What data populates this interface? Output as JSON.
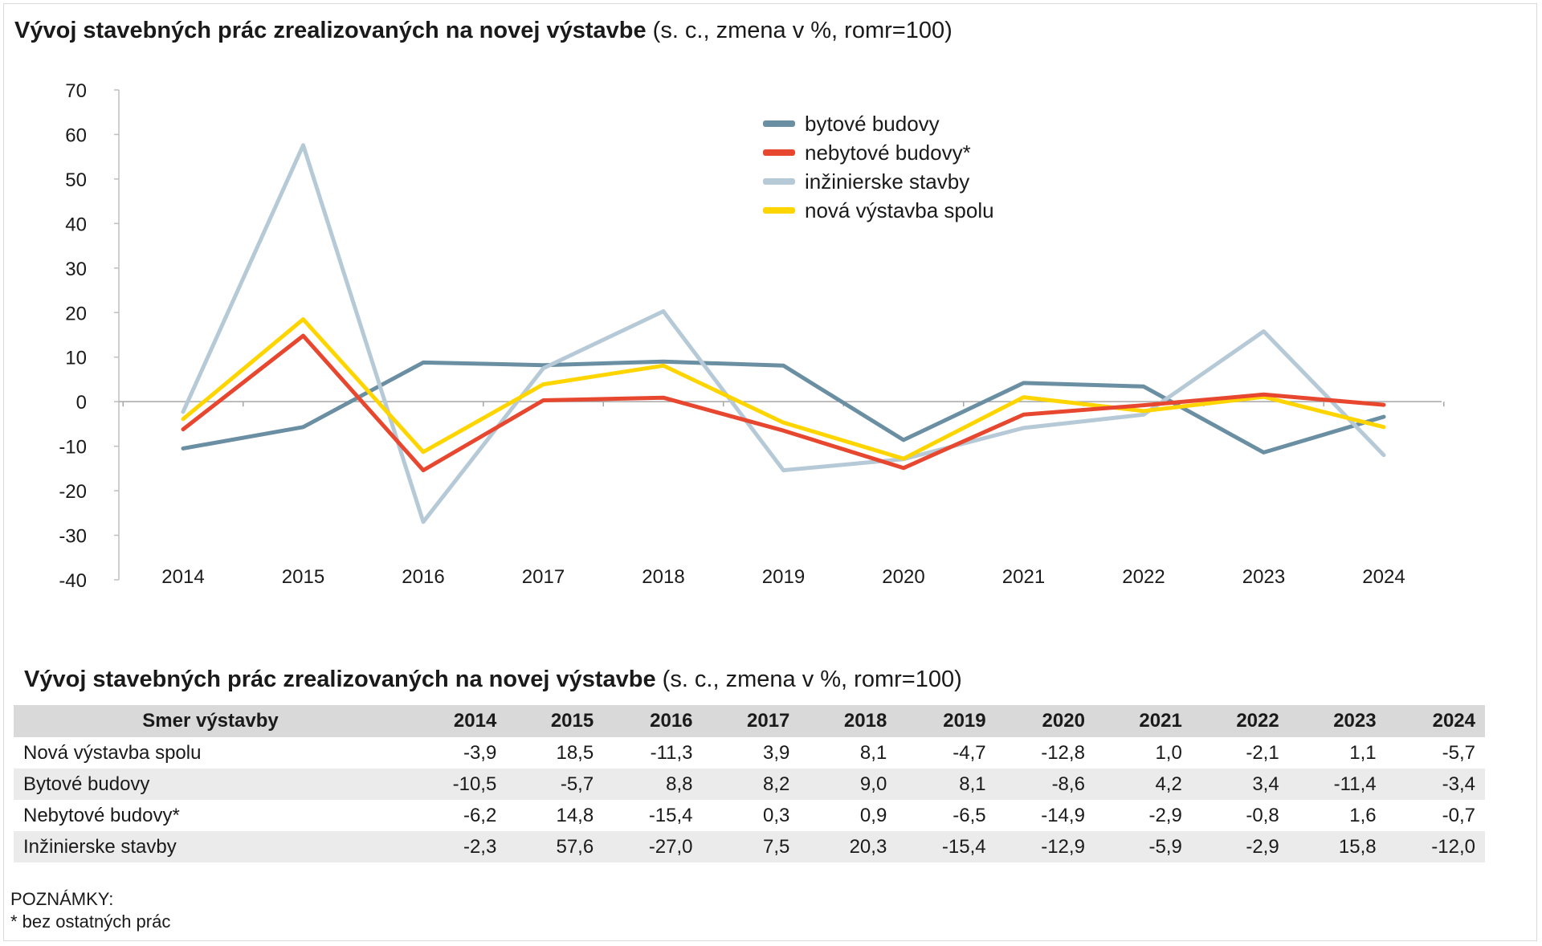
{
  "chart_title": {
    "bold": "Vývoj stavebných prác zrealizovaných na novej výstavbe",
    "rest": "(s. c., zmena v %, romr=100)"
  },
  "table_title": {
    "bold": "Vývoj stavebných prác zrealizovaných na novej výstavbe",
    "rest": "(s. c., zmena v %, romr=100)"
  },
  "chart_data": {
    "type": "line",
    "x": [
      "2014",
      "2015",
      "2016",
      "2017",
      "2018",
      "2019",
      "2020",
      "2021",
      "2022",
      "2023",
      "2024"
    ],
    "ylim": [
      -40,
      70
    ],
    "yticks": [
      "70",
      "60",
      "50",
      "40",
      "30",
      "20",
      "10",
      "0",
      "-10",
      "-20",
      "-30",
      "-40"
    ],
    "legend_position": "top-right",
    "series": [
      {
        "name": "bytové budovy",
        "color": "#6a8fa3",
        "values": [
          -10.5,
          -5.7,
          8.8,
          8.2,
          9.0,
          8.1,
          -8.6,
          4.2,
          3.4,
          -11.4,
          -3.4
        ]
      },
      {
        "name": "nebytové budovy*",
        "color": "#e8472f",
        "values": [
          -6.2,
          14.8,
          -15.4,
          0.3,
          0.9,
          -6.5,
          -14.9,
          -2.9,
          -0.8,
          1.6,
          -0.7
        ]
      },
      {
        "name": "inžinierske stavby",
        "color": "#b6c9d6",
        "values": [
          -2.3,
          57.6,
          -27.0,
          7.5,
          20.3,
          -15.4,
          -12.9,
          -5.9,
          -2.9,
          15.8,
          -12.0
        ]
      },
      {
        "name": "nová výstavba spolu",
        "color": "#ffd500",
        "values": [
          -3.9,
          18.5,
          -11.3,
          3.9,
          8.1,
          -4.7,
          -12.8,
          1.0,
          -2.1,
          1.1,
          -5.7
        ]
      }
    ]
  },
  "table": {
    "header_first": "Smer výstavby",
    "years": [
      "2014",
      "2015",
      "2016",
      "2017",
      "2018",
      "2019",
      "2020",
      "2021",
      "2022",
      "2023",
      "2024"
    ],
    "rows": [
      {
        "label": "Nová výstavba spolu",
        "values": [
          "-3,9",
          "18,5",
          "-11,3",
          "3,9",
          "8,1",
          "-4,7",
          "-12,8",
          "1,0",
          "-2,1",
          "1,1",
          "-5,7"
        ]
      },
      {
        "label": "Bytové budovy",
        "values": [
          "-10,5",
          "-5,7",
          "8,8",
          "8,2",
          "9,0",
          "8,1",
          "-8,6",
          "4,2",
          "3,4",
          "-11,4",
          "-3,4"
        ]
      },
      {
        "label": "Nebytové budovy*",
        "values": [
          "-6,2",
          "14,8",
          "-15,4",
          "0,3",
          "0,9",
          "-6,5",
          "-14,9",
          "-2,9",
          "-0,8",
          "1,6",
          "-0,7"
        ]
      },
      {
        "label": "Inžinierske stavby",
        "values": [
          "-2,3",
          "57,6",
          "-27,0",
          "7,5",
          "20,3",
          "-15,4",
          "-12,9",
          "-5,9",
          "-2,9",
          "15,8",
          "-12,0"
        ]
      }
    ]
  },
  "notes": {
    "heading": "POZNÁMKY:",
    "lines": [
      "*  bez ostatných prác"
    ]
  }
}
